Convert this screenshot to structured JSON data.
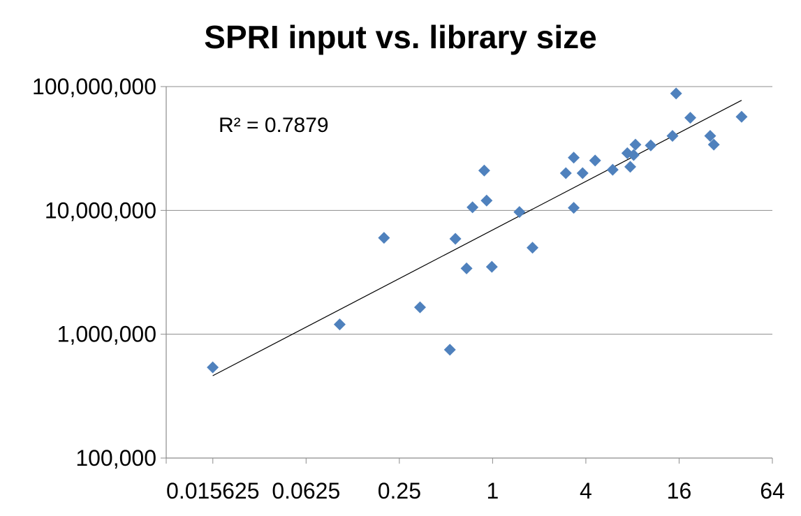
{
  "chart_data": {
    "type": "scatter",
    "title": "SPRI input vs. library size",
    "xlabel": "",
    "ylabel": "",
    "x_scale": "log2",
    "y_scale": "log10",
    "xlim": [
      0.0078125,
      64
    ],
    "ylim": [
      100000,
      100000000
    ],
    "x_ticks": [
      0.0078125,
      0.015625,
      0.0625,
      0.25,
      1,
      4,
      16,
      64
    ],
    "x_tick_labels": [
      "",
      "0.015625",
      "0.0625",
      "0.25",
      "1",
      "4",
      "16",
      "64"
    ],
    "y_ticks": [
      100000,
      1000000,
      10000000,
      100000000
    ],
    "y_tick_labels": [
      "100,000",
      "1,000,000",
      "10,000,000",
      "100,000,000"
    ],
    "grid": {
      "horizontal": true,
      "vertical": false
    },
    "legend": "none",
    "marker": {
      "shape": "diamond",
      "color": "#4f81bd"
    },
    "trendline": {
      "type": "power",
      "from_x": 0.0156,
      "to_x": 40.5,
      "color": "#000000",
      "annotation": "R² = 0.7879"
    },
    "series": [
      {
        "points": [
          {
            "x": 0.0156,
            "y": 540000
          },
          {
            "x": 0.103,
            "y": 1200000
          },
          {
            "x": 0.199,
            "y": 6000000
          },
          {
            "x": 0.34,
            "y": 1650000
          },
          {
            "x": 0.53,
            "y": 750000
          },
          {
            "x": 0.575,
            "y": 5900000
          },
          {
            "x": 0.679,
            "y": 3400000
          },
          {
            "x": 0.742,
            "y": 10600000
          },
          {
            "x": 0.883,
            "y": 21000000
          },
          {
            "x": 0.915,
            "y": 12000000
          },
          {
            "x": 0.989,
            "y": 3500000
          },
          {
            "x": 1.49,
            "y": 9700000
          },
          {
            "x": 1.81,
            "y": 5000000
          },
          {
            "x": 2.97,
            "y": 20000000
          },
          {
            "x": 3.34,
            "y": 26700000
          },
          {
            "x": 3.34,
            "y": 10500000
          },
          {
            "x": 3.81,
            "y": 20000000
          },
          {
            "x": 4.59,
            "y": 25300000
          },
          {
            "x": 5.96,
            "y": 21300000
          },
          {
            "x": 7.41,
            "y": 29000000
          },
          {
            "x": 7.74,
            "y": 22500000
          },
          {
            "x": 8.14,
            "y": 28000000
          },
          {
            "x": 8.36,
            "y": 34000000
          },
          {
            "x": 10.5,
            "y": 33500000
          },
          {
            "x": 14.5,
            "y": 40000000
          },
          {
            "x": 15.3,
            "y": 88000000
          },
          {
            "x": 18.9,
            "y": 56000000
          },
          {
            "x": 25.4,
            "y": 40000000
          },
          {
            "x": 26.8,
            "y": 34000000
          },
          {
            "x": 40.5,
            "y": 57000000
          }
        ]
      }
    ]
  }
}
